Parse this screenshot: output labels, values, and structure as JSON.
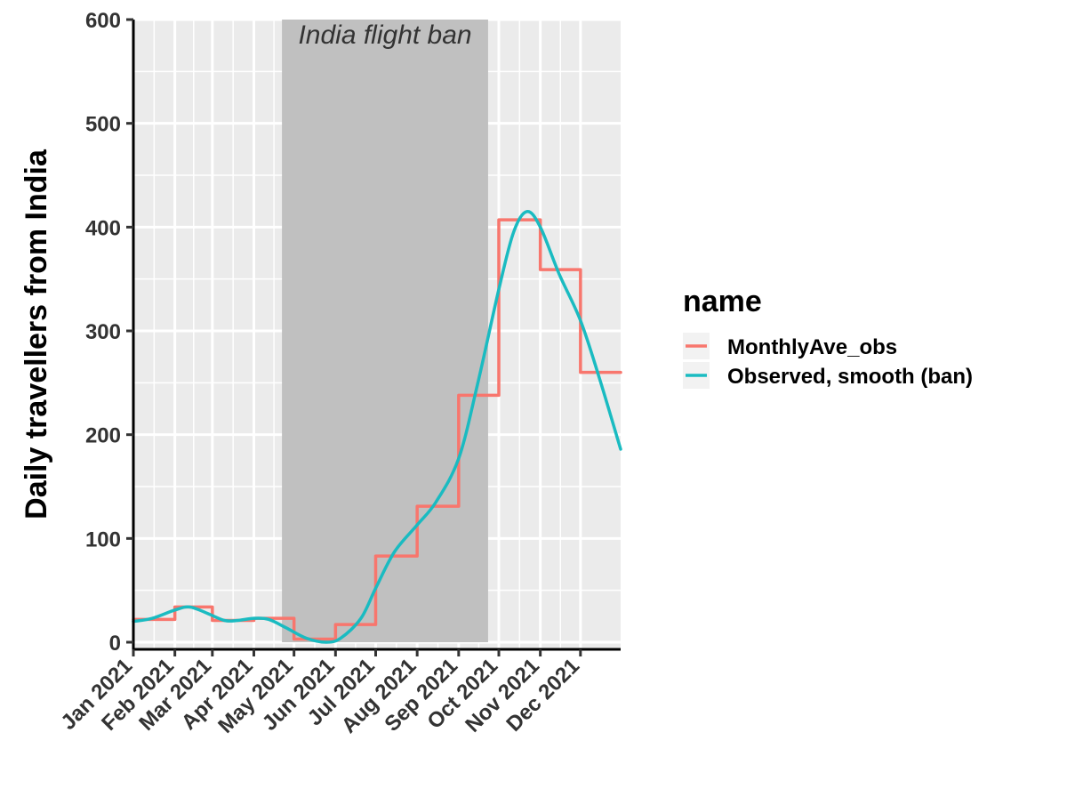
{
  "chart_data": {
    "type": "line",
    "xlabel": "",
    "ylabel": "Daily travellers from India",
    "ylim": [
      0,
      600
    ],
    "yticks": [
      0,
      100,
      200,
      300,
      400,
      500,
      600
    ],
    "xlim": [
      "2021-01-01",
      "2021-12-31"
    ],
    "xticks": [
      {
        "date": "2021-01-01",
        "label": "Jan 2021"
      },
      {
        "date": "2021-02-01",
        "label": "Feb 2021"
      },
      {
        "date": "2021-03-01",
        "label": "Mar 2021"
      },
      {
        "date": "2021-04-01",
        "label": "Apr 2021"
      },
      {
        "date": "2021-05-01",
        "label": "May 2021"
      },
      {
        "date": "2021-06-01",
        "label": "Jun 2021"
      },
      {
        "date": "2021-07-01",
        "label": "Jul 2021"
      },
      {
        "date": "2021-08-01",
        "label": "Aug 2021"
      },
      {
        "date": "2021-09-01",
        "label": "Sep 2021"
      },
      {
        "date": "2021-10-01",
        "label": "Oct 2021"
      },
      {
        "date": "2021-11-01",
        "label": "Nov 2021"
      },
      {
        "date": "2021-12-01",
        "label": "Dec 2021"
      }
    ],
    "grid": true,
    "legend": {
      "title": "name",
      "position": "right"
    },
    "annotation": {
      "text": "India flight ban",
      "start": "2021-04-22",
      "end": "2021-09-23",
      "fill": "#c0c0c0"
    },
    "series": [
      {
        "name": "MonthlyAve_obs",
        "style": "step",
        "color": "#F8766D",
        "points": [
          {
            "x": "2021-01-01",
            "y": 22
          },
          {
            "x": "2021-02-01",
            "y": 34
          },
          {
            "x": "2021-03-01",
            "y": 21
          },
          {
            "x": "2021-04-01",
            "y": 23
          },
          {
            "x": "2021-05-01",
            "y": 3
          },
          {
            "x": "2021-06-01",
            "y": 17
          },
          {
            "x": "2021-07-01",
            "y": 83
          },
          {
            "x": "2021-08-01",
            "y": 131
          },
          {
            "x": "2021-09-01",
            "y": 238
          },
          {
            "x": "2021-10-01",
            "y": 407
          },
          {
            "x": "2021-11-01",
            "y": 359
          },
          {
            "x": "2021-12-01",
            "y": 260
          },
          {
            "x": "2021-12-31",
            "y": 260
          }
        ]
      },
      {
        "name": "Observed, smooth (ban)",
        "style": "smooth",
        "color": "#1ABBC1",
        "points": [
          {
            "x": "2021-01-01",
            "y": 20
          },
          {
            "x": "2021-01-15",
            "y": 23
          },
          {
            "x": "2021-02-01",
            "y": 31
          },
          {
            "x": "2021-02-12",
            "y": 34
          },
          {
            "x": "2021-02-25",
            "y": 28
          },
          {
            "x": "2021-03-10",
            "y": 21
          },
          {
            "x": "2021-03-20",
            "y": 21
          },
          {
            "x": "2021-04-01",
            "y": 23
          },
          {
            "x": "2021-04-12",
            "y": 22
          },
          {
            "x": "2021-04-25",
            "y": 14
          },
          {
            "x": "2021-05-10",
            "y": 4
          },
          {
            "x": "2021-05-25",
            "y": 0
          },
          {
            "x": "2021-06-05",
            "y": 4
          },
          {
            "x": "2021-06-20",
            "y": 23
          },
          {
            "x": "2021-07-01",
            "y": 52
          },
          {
            "x": "2021-07-15",
            "y": 87
          },
          {
            "x": "2021-08-01",
            "y": 113
          },
          {
            "x": "2021-08-15",
            "y": 135
          },
          {
            "x": "2021-09-01",
            "y": 177
          },
          {
            "x": "2021-09-15",
            "y": 248
          },
          {
            "x": "2021-10-01",
            "y": 340
          },
          {
            "x": "2021-10-12",
            "y": 395
          },
          {
            "x": "2021-10-22",
            "y": 415
          },
          {
            "x": "2021-11-01",
            "y": 400
          },
          {
            "x": "2021-11-15",
            "y": 355
          },
          {
            "x": "2021-12-01",
            "y": 310
          },
          {
            "x": "2021-12-15",
            "y": 255
          },
          {
            "x": "2021-12-31",
            "y": 186
          }
        ]
      }
    ]
  }
}
